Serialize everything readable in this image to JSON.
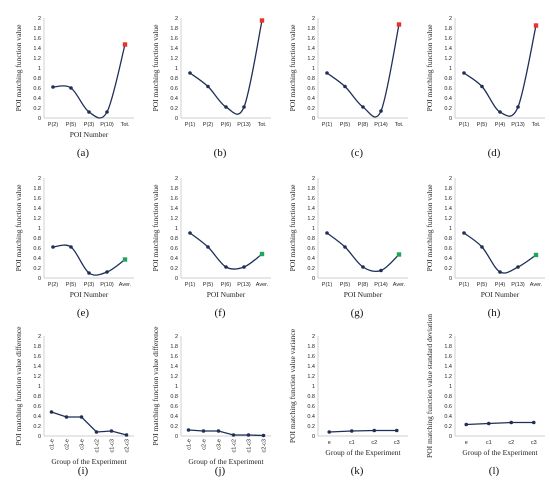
{
  "chart_data": [
    {
      "type": "line",
      "panel_label": "(a)",
      "ylabel": "POI matching function value",
      "xlabel": "POI Number",
      "categories": [
        "P(2)",
        "P(5)",
        "P(3)",
        "P(10)",
        "Tot."
      ],
      "values": [
        0.62,
        0.6,
        0.12,
        0.12,
        1.47
      ],
      "highlight": {
        "index": 4,
        "color": "#e8332a"
      },
      "ylim": [
        0,
        2
      ],
      "yticks": [
        "0",
        "0.2",
        "0.4",
        "0.6",
        "0.8",
        "1",
        "1.2",
        "1.4",
        "1.6",
        "1.8",
        "2"
      ]
    },
    {
      "type": "line",
      "panel_label": "(b)",
      "ylabel": "POI matching function value",
      "xlabel": "",
      "categories": [
        "P(1)",
        "P(2)",
        "P(6)",
        "P(13)",
        "Tot."
      ],
      "values": [
        0.9,
        0.63,
        0.22,
        0.22,
        1.95
      ],
      "highlight": {
        "index": 4,
        "color": "#e8332a"
      },
      "ylim": [
        0,
        2
      ],
      "yticks": [
        "0",
        "0.2",
        "0.4",
        "0.6",
        "0.8",
        "1",
        "1.2",
        "1.4",
        "1.6",
        "1.8",
        "2"
      ]
    },
    {
      "type": "line",
      "panel_label": "(c)",
      "ylabel": "POI matching function value",
      "xlabel": "",
      "categories": [
        "P(1)",
        "P(5)",
        "P(8)",
        "P(14)",
        "Tot."
      ],
      "values": [
        0.9,
        0.63,
        0.22,
        0.14,
        1.87
      ],
      "highlight": {
        "index": 4,
        "color": "#e8332a"
      },
      "ylim": [
        0,
        2
      ],
      "yticks": [
        "0",
        "0.2",
        "0.4",
        "0.6",
        "0.8",
        "1",
        "1.2",
        "1.4",
        "1.6",
        "1.8",
        "2"
      ]
    },
    {
      "type": "line",
      "panel_label": "(d)",
      "ylabel": "POI matching function value",
      "xlabel": "",
      "categories": [
        "P(1)",
        "P(5)",
        "P(4)",
        "P(13)",
        "Tot."
      ],
      "values": [
        0.9,
        0.63,
        0.12,
        0.22,
        1.85
      ],
      "highlight": {
        "index": 4,
        "color": "#e8332a"
      },
      "ylim": [
        0,
        2
      ],
      "yticks": [
        "0",
        "0.2",
        "0.4",
        "0.6",
        "0.8",
        "1",
        "1.2",
        "1.4",
        "1.6",
        "1.8",
        "2"
      ]
    },
    {
      "type": "line",
      "panel_label": "(e)",
      "ylabel": "POI matching function value",
      "xlabel": "POI Number",
      "categories": [
        "P(2)",
        "P(5)",
        "P(3)",
        "P(10)",
        "Aver."
      ],
      "values": [
        0.62,
        0.62,
        0.1,
        0.12,
        0.37
      ],
      "highlight": {
        "index": 4,
        "color": "#22a55b"
      },
      "ylim": [
        0,
        2
      ],
      "yticks": [
        "0",
        "0.2",
        "0.4",
        "0.6",
        "0.8",
        "1",
        "1.2",
        "1.4",
        "1.6",
        "1.8",
        "2"
      ]
    },
    {
      "type": "line",
      "panel_label": "(f)",
      "ylabel": "POI matching function value",
      "xlabel": "POI Number",
      "categories": [
        "P(1)",
        "P(5)",
        "P(6)",
        "P(13)",
        "Aver."
      ],
      "values": [
        0.9,
        0.62,
        0.22,
        0.22,
        0.48
      ],
      "highlight": {
        "index": 4,
        "color": "#22a55b"
      },
      "ylim": [
        0,
        2
      ],
      "yticks": [
        "0",
        "0.2",
        "0.4",
        "0.6",
        "0.8",
        "1",
        "1.2",
        "1.4",
        "1.6",
        "1.8",
        "2"
      ]
    },
    {
      "type": "line",
      "panel_label": "(g)",
      "ylabel": "POI matching function value",
      "xlabel": "POI Number",
      "categories": [
        "P(1)",
        "P(5)",
        "P(8)",
        "P(14)",
        "Aver."
      ],
      "values": [
        0.9,
        0.62,
        0.22,
        0.15,
        0.47
      ],
      "highlight": {
        "index": 4,
        "color": "#22a55b"
      },
      "ylim": [
        0,
        2
      ],
      "yticks": [
        "0",
        "0.2",
        "0.4",
        "0.6",
        "0.8",
        "1",
        "1.2",
        "1.4",
        "1.6",
        "1.8",
        "2"
      ]
    },
    {
      "type": "line",
      "panel_label": "(h)",
      "ylabel": "POI matching function value",
      "xlabel": "POI Number",
      "categories": [
        "P(1)",
        "P(5)",
        "P(4)",
        "P(13)",
        "Aver."
      ],
      "values": [
        0.9,
        0.62,
        0.12,
        0.22,
        0.46
      ],
      "highlight": {
        "index": 4,
        "color": "#22a55b"
      },
      "ylim": [
        0,
        2
      ],
      "yticks": [
        "0",
        "0.2",
        "0.4",
        "0.6",
        "0.8",
        "1",
        "1.2",
        "1.4",
        "1.6",
        "1.8",
        "2"
      ]
    },
    {
      "type": "line",
      "panel_label": "(i)",
      "ylabel": "POI matching function value difference",
      "xlabel": "Group of the Experiment",
      "categories": [
        "c1-e",
        "c2-e",
        "c3-e",
        "c1-c2",
        "c1-c3",
        "c2-c3"
      ],
      "values": [
        0.48,
        0.38,
        0.38,
        0.08,
        0.1,
        0.02
      ],
      "ylim": [
        0,
        2
      ],
      "yticks": [
        "0",
        "0.2",
        "0.4",
        "0.6",
        "0.8",
        "1",
        "1.2",
        "1.4",
        "1.6",
        "1.8",
        "2"
      ]
    },
    {
      "type": "line",
      "panel_label": "(j)",
      "ylabel": "POI matching function value difference",
      "xlabel": "Group of the Experiment",
      "categories": [
        "c1-e",
        "c2-e",
        "c3-e",
        "c1-c2",
        "c1-c3",
        "c2-c3"
      ],
      "values": [
        0.12,
        0.1,
        0.1,
        0.02,
        0.02,
        0.01
      ],
      "ylim": [
        0,
        2
      ],
      "yticks": [
        "0",
        "0.2",
        "0.4",
        "0.6",
        "0.8",
        "1",
        "1.2",
        "1.4",
        "1.6",
        "1.8",
        "2"
      ]
    },
    {
      "type": "line",
      "panel_label": "(k)",
      "ylabel": "POI matching function value variance",
      "xlabel": "Group of the Experiment",
      "categories": [
        "e",
        "c1",
        "c2",
        "c3"
      ],
      "values": [
        0.08,
        0.1,
        0.11,
        0.11
      ],
      "ylim": [
        0,
        2
      ],
      "yticks": [
        "0",
        "0.2",
        "0.4",
        "0.6",
        "0.8",
        "1",
        "1.2",
        "1.4",
        "1.6",
        "1.8",
        "2"
      ]
    },
    {
      "type": "line",
      "panel_label": "(l)",
      "ylabel": "POI matching function value standard deviation",
      "xlabel": "Group of the Experiment",
      "categories": [
        "e",
        "c1",
        "c2",
        "c3"
      ],
      "values": [
        0.23,
        0.25,
        0.27,
        0.27
      ],
      "ylim": [
        0,
        2
      ],
      "yticks": [
        "0",
        "0.2",
        "0.4",
        "0.6",
        "0.8",
        "1",
        "1.2",
        "1.4",
        "1.6",
        "1.8",
        "2"
      ]
    }
  ]
}
